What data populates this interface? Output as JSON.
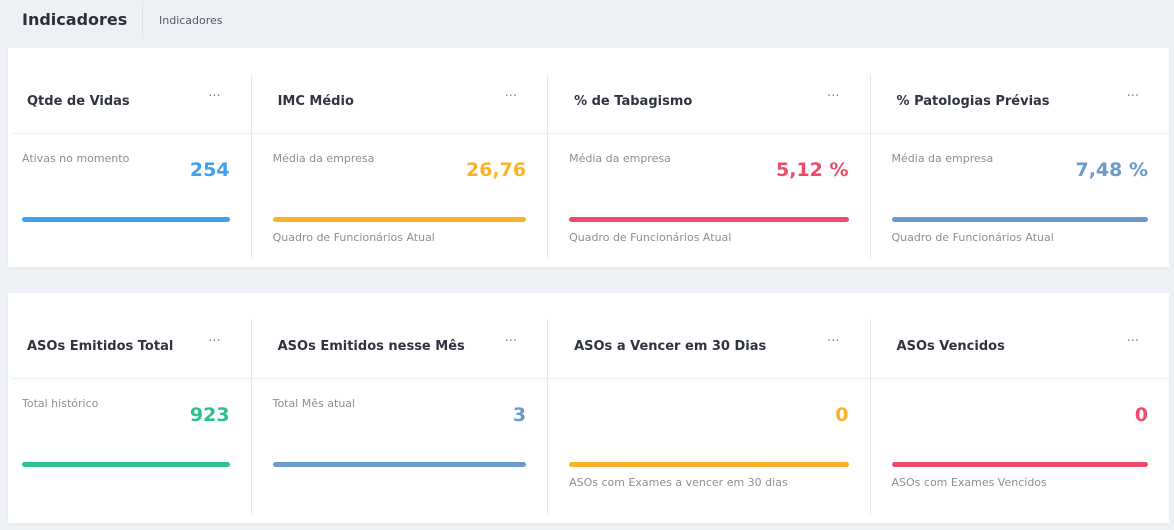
{
  "header": {
    "title": "Indicadores",
    "breadcrumb": "Indicadores"
  },
  "menu_glyph": "···",
  "rows": [
    [
      {
        "title": "Qtde de Vidas",
        "subtitle": "Ativas no momento",
        "value": "254",
        "footer": "",
        "color": "#3ea1ee"
      },
      {
        "title": "IMC Médio",
        "subtitle": "Média da empresa",
        "value": "26,76",
        "footer": "Quadro de Funcionários Atual",
        "color": "#fbb22b"
      },
      {
        "title": "% de Tabagismo",
        "subtitle": "Média da empresa",
        "value": "5,12 %",
        "footer": "Quadro de Funcionários Atual",
        "color": "#ee4b6a"
      },
      {
        "title": "% Patologias Prévias",
        "subtitle": "Média da empresa",
        "value": "7,48 %",
        "footer": "Quadro de Funcionários Atual",
        "color": "#6a9bc9"
      }
    ],
    [
      {
        "title": "ASOs Emitidos Total",
        "subtitle": "Total histórico",
        "value": "923",
        "footer": "",
        "color": "#2fc08e"
      },
      {
        "title": "ASOs Emitidos nesse Mês",
        "subtitle": "Total Mês atual",
        "value": "3",
        "footer": "",
        "color": "#6a9bc9"
      },
      {
        "title": "ASOs a Vencer em 30 Dias",
        "subtitle": "",
        "value": "0",
        "footer": "ASOs com Exames a vencer em 30 dias",
        "color": "#fbb22b"
      },
      {
        "title": "ASOs Vencidos",
        "subtitle": "",
        "value": "0",
        "footer": "ASOs com Exames Vencidos",
        "color": "#ee4b6a"
      }
    ]
  ]
}
